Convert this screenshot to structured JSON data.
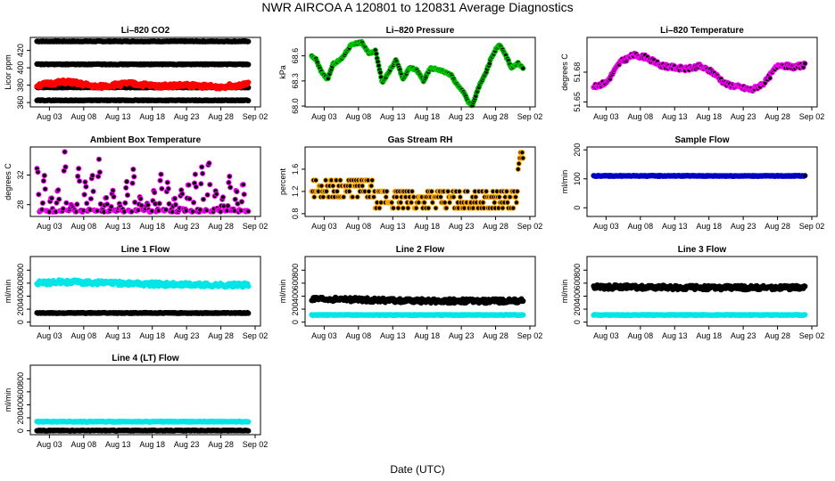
{
  "title": "NWR   AIRCOA A   120801 to 120831   Average Diagnostics",
  "xlabel": "Date (UTC)",
  "x_ticks": [
    "Aug 03",
    "Aug 08",
    "Aug 13",
    "Aug 18",
    "Aug 23",
    "Aug 28",
    "Sep 02"
  ],
  "chart_data": [
    {
      "type": "scatter",
      "title": "Li–820 CO2",
      "ylabel": "Licor ppm",
      "yticks": [
        "360",
        "380",
        "400",
        "420"
      ],
      "ylim": [
        355,
        435
      ],
      "xlim": [
        0,
        32
      ],
      "series": [
        {
          "color": "#000000",
          "pattern": "flat",
          "values": [
            430.5,
            430.5
          ]
        },
        {
          "color": "#000000",
          "pattern": "flat",
          "values": [
            404,
            404
          ]
        },
        {
          "color": "#000000",
          "pattern": "flat",
          "values": [
            362.5,
            362.5
          ]
        },
        {
          "color": "#000000",
          "pattern": "flat",
          "values": [
            377.5,
            377.5
          ]
        },
        {
          "color": "#ff0000",
          "pattern": "noise",
          "values": [
            380,
            384,
            378,
            382,
            379,
            380,
            378,
            381
          ]
        }
      ]
    },
    {
      "type": "scatter",
      "title": "Li–820 Pressure",
      "ylabel": "kPa",
      "yticks": [
        "68.0",
        "68.3",
        "68.6"
      ],
      "ylim": [
        67.99,
        68.82
      ],
      "xlim": [
        0,
        32
      ],
      "series": [
        {
          "color": "#000000",
          "outline": "#00cc00",
          "pattern": "path",
          "x": [
            0,
            0.8,
            1.5,
            2.5,
            3.3,
            4.5,
            6,
            7.5,
            8.5,
            9.5,
            10.5,
            11.5,
            12.5,
            13.5,
            14.5,
            15.5,
            16.5,
            17.5,
            18.5,
            19.5,
            20.5,
            21.5,
            22.5,
            23,
            23.6,
            24.5,
            25.5,
            26.5,
            27.5,
            28.5,
            29.3,
            30.3,
            31
          ],
          "values": [
            68.6,
            68.56,
            68.42,
            68.32,
            68.5,
            68.56,
            68.74,
            68.76,
            68.63,
            68.66,
            68.28,
            68.42,
            68.55,
            68.32,
            68.46,
            68.43,
            68.3,
            68.45,
            68.44,
            68.41,
            68.37,
            68.24,
            68.15,
            68.05,
            68.0,
            68.22,
            68.38,
            68.6,
            68.74,
            68.6,
            68.46,
            68.51,
            68.45
          ]
        }
      ]
    },
    {
      "type": "scatter",
      "title": "Li–820 Temperature",
      "ylabel": "degrees C",
      "yticks": [
        "51.65",
        "51.68"
      ],
      "ylim": [
        51.645,
        51.715
      ],
      "xlim": [
        0,
        32
      ],
      "series": [
        {
          "color": "#000000",
          "outline": "#ff00ff",
          "pattern": "noise",
          "values": [
            51.665,
            51.67,
            51.69,
            51.697,
            51.695,
            51.687,
            51.685,
            51.683,
            51.686,
            51.68,
            51.668,
            51.665,
            51.662,
            51.67,
            51.688,
            51.685,
            51.687
          ]
        }
      ]
    },
    {
      "type": "scatter",
      "title": "Ambient Box Temperature",
      "ylabel": "degrees C",
      "yticks": [
        "28",
        "32"
      ],
      "ylim": [
        26.4,
        35.8
      ],
      "xlim": [
        0,
        32
      ],
      "series": [
        {
          "color": "#000000",
          "outline": "#ff00ff",
          "pattern": "diurnal",
          "values": [
            33,
            32,
            29,
            30,
            35,
            28,
            33,
            31,
            32,
            34,
            29,
            30,
            28,
            31,
            33,
            29,
            28,
            30,
            32,
            31,
            29,
            30,
            31,
            32,
            33,
            34,
            30,
            29,
            32,
            30,
            31
          ]
        }
      ]
    },
    {
      "type": "scatter",
      "title": "Gas Stream RH",
      "ylabel": "percent",
      "yticks": [
        "0.8",
        "1.2",
        "1.6"
      ],
      "ylim": [
        0.75,
        2.0
      ],
      "xlim": [
        0,
        32
      ],
      "series": [
        {
          "color": "#000000",
          "outline": "#ffa500",
          "pattern": "levels",
          "levels": [
            0.9,
            1.0,
            1.1,
            1.2,
            1.3,
            1.4
          ],
          "end_values": [
            1.6,
            1.7,
            1.8,
            1.9
          ]
        }
      ]
    },
    {
      "type": "scatter",
      "title": "Sample Flow",
      "ylabel": "ml/min",
      "yticks": [
        "0",
        "100",
        "200"
      ],
      "ylim": [
        -30,
        210
      ],
      "xlim": [
        0,
        32
      ],
      "series": [
        {
          "color": "#000000",
          "outline": "#0000cc",
          "pattern": "flat",
          "values": [
            110,
            110
          ]
        }
      ]
    },
    {
      "type": "scatter",
      "title": "Line 1 Flow",
      "ylabel": "ml/min",
      "yticks": [
        "0",
        "200",
        "400",
        "600",
        "800"
      ],
      "ylim": [
        -60,
        1010
      ],
      "xlim": [
        0,
        32
      ],
      "series": [
        {
          "color": "#00e5e5",
          "pattern": "noise",
          "values": [
            600,
            620,
            610,
            600,
            590,
            580,
            575,
            570,
            570
          ]
        },
        {
          "color": "#000000",
          "pattern": "flat",
          "values": [
            140,
            140
          ]
        }
      ]
    },
    {
      "type": "scatter",
      "title": "Line 2 Flow",
      "ylabel": "ml/min",
      "yticks": [
        "0",
        "200",
        "400",
        "600",
        "800"
      ],
      "ylim": [
        -60,
        1010
      ],
      "xlim": [
        0,
        32
      ],
      "series": [
        {
          "color": "#00e5e5",
          "pattern": "flat",
          "values": [
            110,
            110
          ]
        },
        {
          "color": "#000000",
          "pattern": "noise",
          "values": [
            350,
            350,
            340,
            330,
            325,
            325,
            325,
            325
          ]
        }
      ]
    },
    {
      "type": "scatter",
      "title": "Line 3 Flow",
      "ylabel": "ml/min",
      "yticks": [
        "0",
        "200",
        "400",
        "600",
        "800"
      ],
      "ylim": [
        -60,
        1010
      ],
      "xlim": [
        0,
        32
      ],
      "series": [
        {
          "color": "#00e5e5",
          "pattern": "flat",
          "values": [
            110,
            110
          ]
        },
        {
          "color": "#000000",
          "pattern": "noise",
          "values": [
            540,
            540,
            535,
            530,
            530,
            530,
            530,
            530
          ]
        }
      ]
    },
    {
      "type": "scatter",
      "title": "Line 4 (LT) Flow",
      "ylabel": "ml/min",
      "yticks": [
        "0",
        "200",
        "400",
        "600",
        "800"
      ],
      "ylim": [
        -60,
        1010
      ],
      "xlim": [
        0,
        32
      ],
      "series": [
        {
          "color": "#00e5e5",
          "pattern": "flat",
          "values": [
            140,
            140
          ]
        },
        {
          "color": "#000000",
          "pattern": "flat",
          "values": [
            3,
            3
          ]
        }
      ]
    }
  ]
}
